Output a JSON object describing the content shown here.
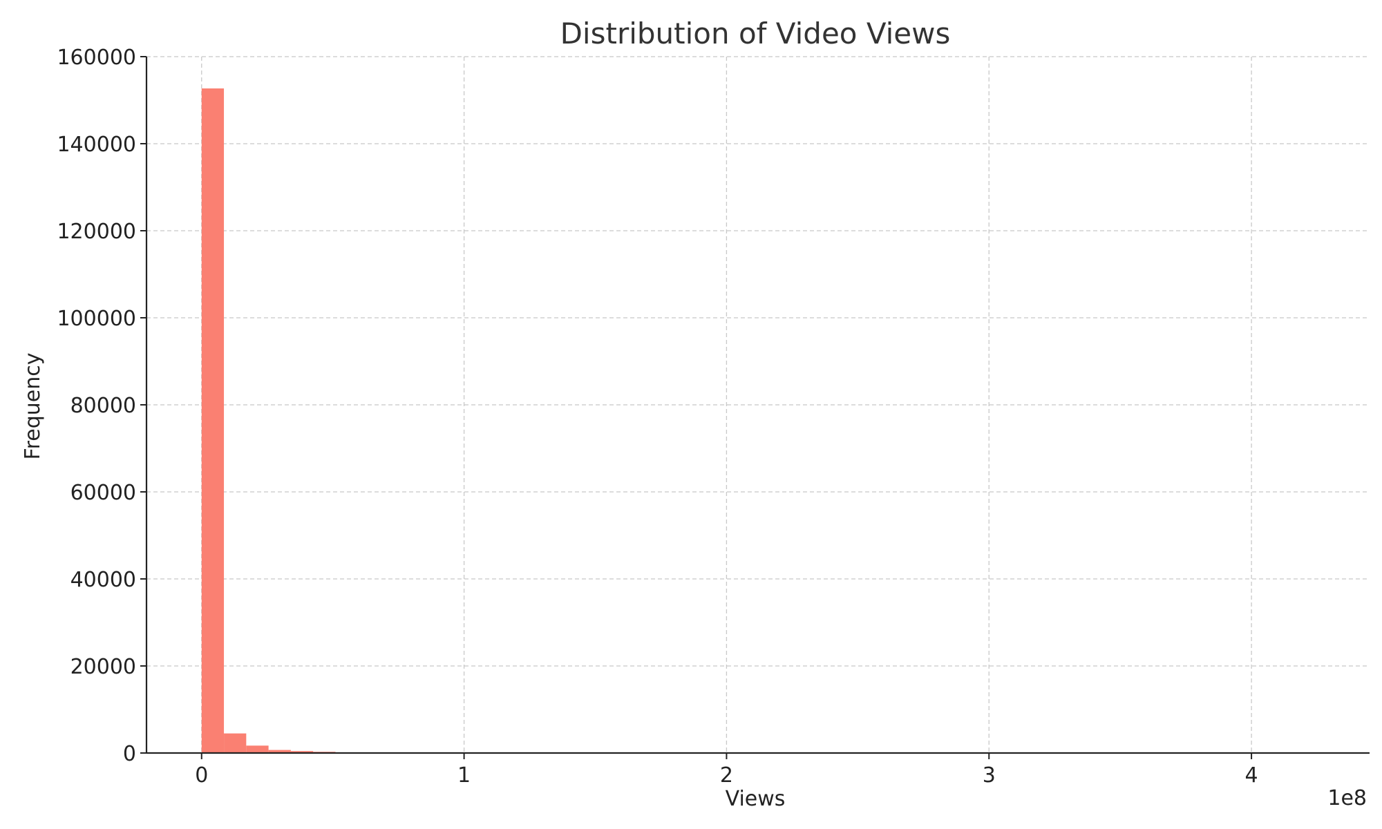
{
  "chart_data": {
    "type": "bar",
    "title": "Distribution of Video Views",
    "xlabel": "Views",
    "ylabel": "Frequency",
    "x_offset_text": "1e8",
    "bar_color": "#fa8072",
    "grid": true,
    "xlim": [
      -0.21,
      4.45
    ],
    "ylim": [
      0,
      160000
    ],
    "x_ticks": [
      0,
      1,
      2,
      3,
      4
    ],
    "x_tick_labels": [
      "0",
      "1",
      "2",
      "3",
      "4"
    ],
    "y_ticks": [
      0,
      20000,
      40000,
      60000,
      80000,
      100000,
      120000,
      140000,
      160000
    ],
    "y_tick_labels": [
      "0",
      "20000",
      "40000",
      "60000",
      "80000",
      "100000",
      "120000",
      "140000",
      "160000"
    ],
    "bin_edges": [
      0,
      0.085,
      0.17,
      0.255,
      0.34,
      0.425,
      0.51,
      0.595,
      0.68,
      0.765,
      0.85,
      0.935,
      1.02,
      1.105,
      1.19,
      1.275,
      1.36,
      1.445,
      1.53,
      1.615,
      1.7,
      1.785,
      1.87,
      1.955,
      2.04,
      2.125,
      2.21,
      2.295,
      2.38,
      2.465,
      2.55,
      2.635,
      2.72,
      2.805,
      2.89,
      2.975,
      3.06,
      3.145,
      3.23,
      3.315,
      3.4,
      3.485,
      3.57,
      3.655,
      3.74,
      3.825,
      3.91,
      3.995,
      4.08,
      4.165,
      4.25
    ],
    "values": [
      152700,
      4500,
      1700,
      700,
      450,
      280,
      150,
      90,
      60,
      40,
      30,
      20,
      15,
      10,
      8,
      6,
      5,
      4,
      3,
      3,
      2,
      2,
      2,
      1,
      1,
      1,
      1,
      1,
      1,
      1,
      0,
      1,
      0,
      1,
      0,
      1,
      0,
      0,
      1,
      0,
      0,
      0,
      1,
      0,
      0,
      0,
      0,
      0,
      0,
      1
    ]
  }
}
